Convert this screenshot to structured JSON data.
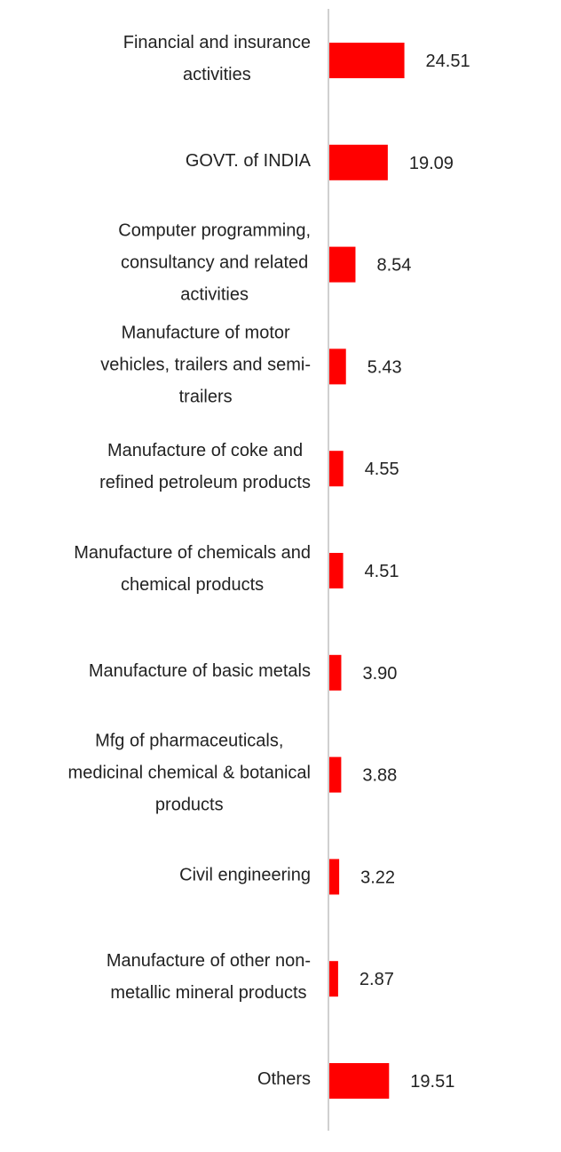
{
  "chart_data": {
    "type": "bar",
    "orientation": "horizontal",
    "categories": [
      "Financial and insurance activities",
      "GOVT. of INDIA",
      "Computer programming, consultancy and related activities",
      "Manufacture of motor vehicles, trailers and semi-trailers",
      "Manufacture of coke and refined petroleum products",
      "Manufacture of chemicals and chemical products",
      "Manufacture of basic metals",
      "Mfg of pharmaceuticals, medicinal chemical & botanical products",
      "Civil engineering",
      "Manufacture of other non-metallic mineral products",
      "Others"
    ],
    "category_lines": [
      [
        "Financial and insurance",
        "activities"
      ],
      [
        "GOVT. of INDIA"
      ],
      [
        "Computer programming,",
        "consultancy and related",
        "activities"
      ],
      [
        "Manufacture of motor",
        "vehicles, trailers and semi-",
        "trailers"
      ],
      [
        "Manufacture of coke and",
        "refined petroleum products"
      ],
      [
        "Manufacture of chemicals and",
        "chemical products"
      ],
      [
        "Manufacture of basic metals"
      ],
      [
        "Mfg of pharmaceuticals,",
        "medicinal chemical & botanical",
        "products"
      ],
      [
        "Civil engineering"
      ],
      [
        "Manufacture of other non-",
        "metallic mineral products"
      ],
      [
        "Others"
      ]
    ],
    "values": [
      24.51,
      19.09,
      8.54,
      5.43,
      4.55,
      4.51,
      3.9,
      3.88,
      3.22,
      2.87,
      19.51
    ],
    "value_labels": [
      "24.51",
      "19.09",
      "8.54",
      "5.43",
      "4.55",
      "4.51",
      "3.90",
      "3.88",
      "3.22",
      "2.87",
      "19.51"
    ],
    "bar_color": "#ff0000",
    "axis_color": "#d0d0d0",
    "text_color": "#222222",
    "title": "",
    "xlabel": "",
    "ylabel": "",
    "grid": false,
    "legend": "none"
  }
}
